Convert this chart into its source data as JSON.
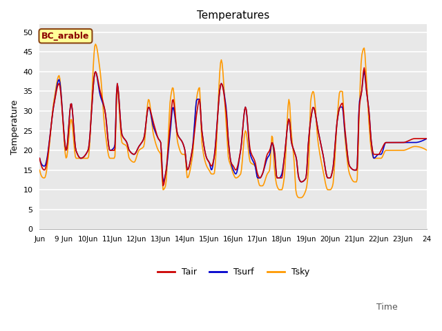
{
  "title": "Temperatures",
  "xlabel": "Time",
  "ylabel": "Temperature",
  "label_box": "BC_arable",
  "ylim": [
    0,
    52
  ],
  "xlim_start": 8.0,
  "xlim_end": 24.0,
  "xtick_positions": [
    8,
    9,
    10,
    11,
    12,
    13,
    14,
    15,
    16,
    17,
    18,
    19,
    20,
    21,
    22,
    23,
    24
  ],
  "xtick_labels": [
    "Jun",
    "9 Jun",
    "10Jun",
    "11Jun",
    "12Jun",
    "13Jun",
    "14Jun",
    "15Jun",
    "16Jun",
    "17Jun",
    "18Jun",
    "19Jun",
    "20Jun",
    "21Jun",
    "22Jun",
    "23Jun",
    "24"
  ],
  "ytick_positions": [
    0,
    5,
    10,
    15,
    20,
    25,
    30,
    35,
    40,
    45,
    50
  ],
  "color_tair": "#cc0000",
  "color_tsurf": "#0000cc",
  "color_tsky": "#ff9900",
  "line_width": 1.2,
  "bg_color": "#e8e8e8",
  "fig_bg_color": "#ffffff",
  "legend_label_tair": "Tair",
  "legend_label_tsurf": "Tsurf",
  "legend_label_tsky": "Tsky",
  "box_label_color": "#8b0000",
  "box_bg_color": "#ffff99",
  "box_border_color": "#8b4513",
  "tair_peaks": [
    37,
    32,
    40,
    37,
    31,
    27,
    33,
    30,
    37,
    30,
    31,
    25,
    28,
    22,
    31,
    30,
    35,
    31,
    41,
    35,
    19,
    23
  ],
  "tair_mins": [
    15,
    18,
    17,
    20,
    20,
    15,
    16,
    11,
    14,
    15,
    14,
    13,
    10,
    13,
    12,
    13,
    13,
    9,
    12,
    13,
    15,
    19
  ],
  "tsurf_peaks": [
    38,
    32,
    40,
    37,
    37,
    27,
    31,
    30,
    33,
    30,
    31,
    25,
    28,
    22,
    31,
    30,
    31,
    30,
    40,
    35,
    19,
    23
  ],
  "tsurf_mins": [
    16,
    18,
    20,
    20,
    20,
    15,
    15,
    12,
    15,
    15,
    14,
    13,
    10,
    13,
    12,
    13,
    12,
    9,
    12,
    13,
    15,
    20
  ],
  "tsky_peaks": [
    39,
    28,
    47,
    42,
    36,
    22,
    34,
    28,
    36,
    33,
    43,
    25,
    33,
    24,
    34,
    24,
    35,
    24,
    45,
    46,
    20,
    23
  ],
  "tsky_mins": [
    13,
    17,
    18,
    18,
    16,
    16,
    11,
    10,
    11,
    13,
    11,
    12,
    8,
    11,
    10,
    11,
    8,
    7,
    10,
    12,
    18,
    20
  ]
}
